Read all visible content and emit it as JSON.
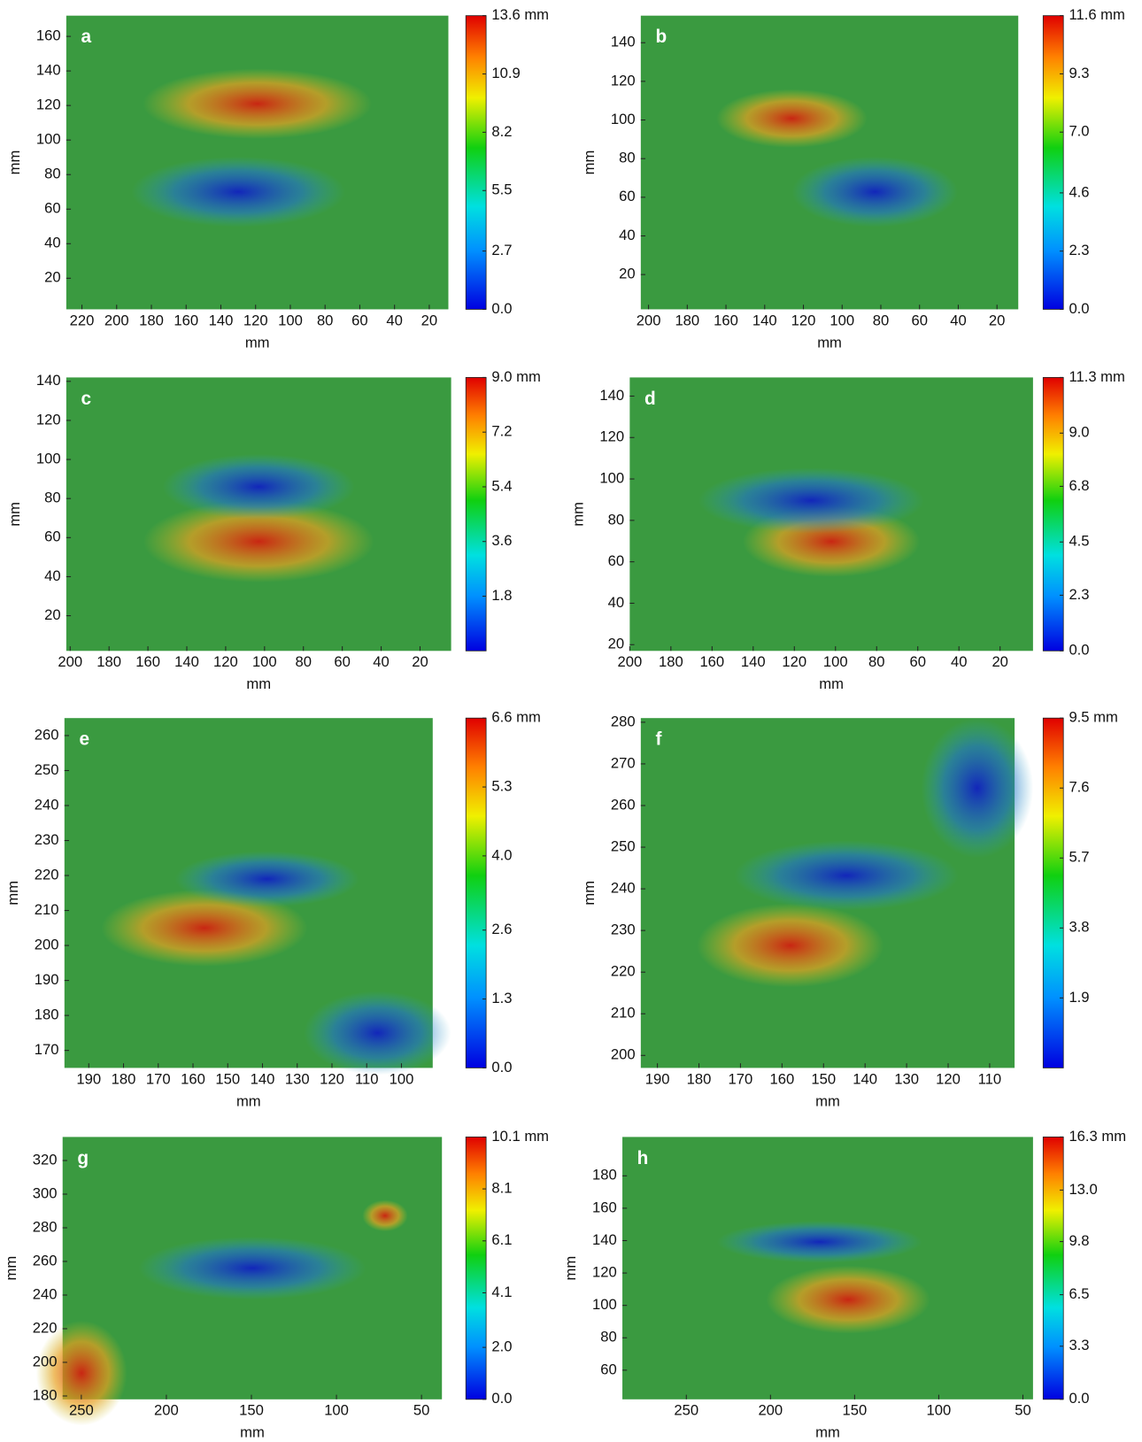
{
  "chart_data": [
    {
      "type": "heatmap",
      "panel_label": "a",
      "xlabel": "mm",
      "ylabel": "mm",
      "xlim": [
        229,
        9
      ],
      "xticks": [
        220,
        200,
        180,
        160,
        140,
        120,
        100,
        80,
        60,
        40,
        20
      ],
      "ylim": [
        2,
        172
      ],
      "yticks": [
        20,
        40,
        60,
        80,
        100,
        120,
        140,
        160
      ],
      "colorbar": {
        "clim": [
          0,
          13.6
        ],
        "ticks": [
          {
            "value": 0,
            "label": "0.0"
          },
          2.7,
          5.5,
          8.2,
          10.9,
          {
            "value": 13.6,
            "label": "13.6 mm"
          }
        ]
      }
    },
    {
      "type": "heatmap",
      "panel_label": "b",
      "xlabel": "mm",
      "ylabel": "mm",
      "xlim": [
        204,
        9
      ],
      "xticks": [
        200,
        180,
        160,
        140,
        120,
        100,
        80,
        60,
        40,
        20
      ],
      "ylim": [
        2,
        154
      ],
      "yticks": [
        20,
        40,
        60,
        80,
        100,
        120,
        140
      ],
      "colorbar": {
        "clim": [
          0,
          11.6
        ],
        "ticks": [
          {
            "value": 0,
            "label": "0.0"
          },
          2.3,
          4.6,
          {
            "value": 7,
            "label": "7.0"
          },
          9.3,
          {
            "value": 11.6,
            "label": "11.6 mm"
          }
        ]
      }
    },
    {
      "type": "heatmap",
      "panel_label": "c",
      "xlabel": "mm",
      "ylabel": "mm",
      "xlim": [
        202,
        4
      ],
      "xticks": [
        200,
        180,
        160,
        140,
        120,
        100,
        80,
        60,
        40,
        20
      ],
      "ylim": [
        2,
        142
      ],
      "yticks": [
        20,
        40,
        60,
        80,
        100,
        120,
        140
      ],
      "colorbar": {
        "clim": [
          0,
          9
        ],
        "ticks": [
          1.8,
          3.6,
          5.4,
          7.2,
          {
            "value": 9,
            "label": "9.0 mm"
          }
        ]
      }
    },
    {
      "type": "heatmap",
      "panel_label": "d",
      "xlabel": "mm",
      "ylabel": "mm",
      "xlim": [
        200,
        4
      ],
      "xticks": [
        200,
        180,
        160,
        140,
        120,
        100,
        80,
        60,
        40,
        20
      ],
      "ylim": [
        17,
        149
      ],
      "yticks": [
        20,
        40,
        60,
        80,
        100,
        120,
        140
      ],
      "colorbar": {
        "clim": [
          0,
          11.3
        ],
        "ticks": [
          {
            "value": 0,
            "label": "0.0"
          },
          2.3,
          4.5,
          6.8,
          {
            "value": 9,
            "label": "9.0"
          },
          {
            "value": 11.3,
            "label": "11.3 mm"
          }
        ]
      }
    },
    {
      "type": "heatmap",
      "panel_label": "e",
      "xlabel": "mm",
      "ylabel": "mm",
      "xlim": [
        197,
        91
      ],
      "xticks": [
        190,
        180,
        170,
        160,
        150,
        140,
        130,
        120,
        110,
        100
      ],
      "ylim": [
        165,
        265
      ],
      "yticks": [
        170,
        180,
        190,
        200,
        210,
        220,
        230,
        240,
        250,
        260
      ],
      "colorbar": {
        "clim": [
          0,
          6.6
        ],
        "ticks": [
          {
            "value": 0,
            "label": "0.0"
          },
          1.3,
          2.6,
          {
            "value": 4,
            "label": "4.0"
          },
          5.3,
          {
            "value": 6.6,
            "label": "6.6 mm"
          }
        ]
      }
    },
    {
      "type": "heatmap",
      "panel_label": "f",
      "xlabel": "mm",
      "ylabel": "mm",
      "xlim": [
        194,
        104
      ],
      "xticks": [
        190,
        180,
        170,
        160,
        150,
        140,
        130,
        120,
        110
      ],
      "ylim": [
        197,
        281
      ],
      "yticks": [
        200,
        210,
        220,
        230,
        240,
        250,
        260,
        270,
        280
      ],
      "colorbar": {
        "clim": [
          0,
          9.5
        ],
        "ticks": [
          1.9,
          3.8,
          5.7,
          7.6,
          {
            "value": 9.5,
            "label": "9.5 mm"
          }
        ]
      }
    },
    {
      "type": "heatmap",
      "panel_label": "g",
      "xlabel": "mm",
      "ylabel": "mm",
      "xlim": [
        261,
        38
      ],
      "xticks": [
        250,
        200,
        150,
        100,
        50
      ],
      "ylim": [
        178,
        334
      ],
      "yticks": [
        180,
        200,
        220,
        240,
        260,
        280,
        300,
        320
      ],
      "colorbar": {
        "clim": [
          0,
          10.1
        ],
        "ticks": [
          {
            "value": 0,
            "label": "0.0"
          },
          {
            "value": 2,
            "label": "2.0"
          },
          4.1,
          6.1,
          8.1,
          {
            "value": 10.1,
            "label": "10.1 mm"
          }
        ]
      }
    },
    {
      "type": "heatmap",
      "panel_label": "h",
      "xlabel": "mm",
      "ylabel": "mm",
      "xlim": [
        288,
        44
      ],
      "xticks": [
        250,
        200,
        150,
        100,
        50
      ],
      "ylim": [
        42,
        204
      ],
      "yticks": [
        60,
        80,
        100,
        120,
        140,
        160,
        180
      ],
      "colorbar": {
        "clim": [
          0,
          16.3
        ],
        "ticks": [
          {
            "value": 0,
            "label": "0.0"
          },
          3.3,
          6.5,
          9.8,
          {
            "value": 13,
            "label": "13.0"
          },
          {
            "value": 16.3,
            "label": "16.3 mm"
          }
        ]
      }
    }
  ]
}
